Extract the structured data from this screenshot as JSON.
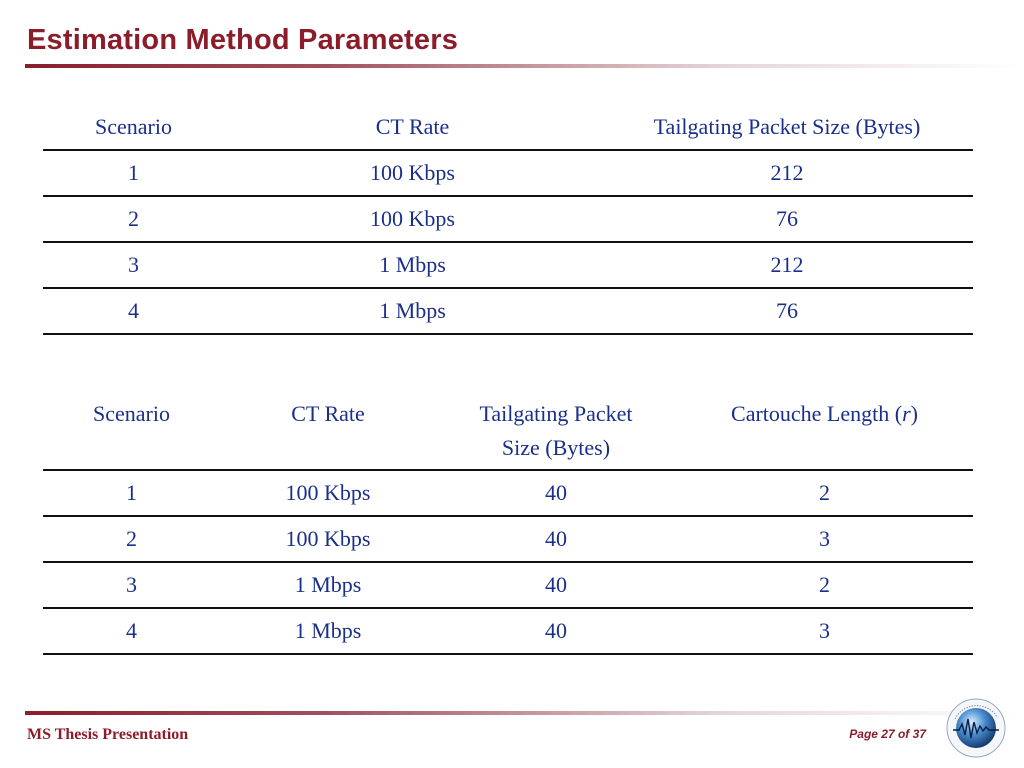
{
  "slide": {
    "title": "Estimation Method Parameters"
  },
  "table1": {
    "headers": [
      "Scenario",
      "CT Rate",
      "Tailgating Packet Size (Bytes)"
    ],
    "rows": [
      [
        "1",
        "100 Kbps",
        "212"
      ],
      [
        "2",
        "100 Kbps",
        "76"
      ],
      [
        "3",
        "1 Mbps",
        "212"
      ],
      [
        "4",
        "1 Mbps",
        "76"
      ]
    ]
  },
  "table2": {
    "headers": {
      "scenario": "Scenario",
      "ct_rate": "CT Rate",
      "packet_size_line1": "Tailgating Packet",
      "packet_size_line2": "Size (Bytes)",
      "cartouche_prefix": "Cartouche Length (",
      "cartouche_var": "r",
      "cartouche_suffix": ")"
    },
    "rows": [
      [
        "1",
        "100 Kbps",
        "40",
        "2"
      ],
      [
        "2",
        "100 Kbps",
        "40",
        "3"
      ],
      [
        "3",
        "1 Mbps",
        "40",
        "2"
      ],
      [
        "4",
        "1 Mbps",
        "40",
        "3"
      ]
    ]
  },
  "footer": {
    "left": "MS Thesis Presentation",
    "page": "Page 27 of 37"
  },
  "colors": {
    "title": "#8b1d2b",
    "table_text": "#1a2f8a"
  },
  "logo": "globe-waveform-logo"
}
